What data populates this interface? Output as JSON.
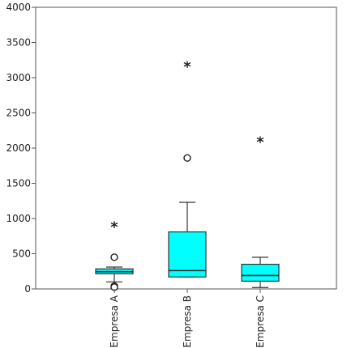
{
  "chart_data": {
    "type": "boxplot",
    "title": "",
    "xlabel": "",
    "ylabel": "",
    "ylim": [
      0,
      4000
    ],
    "yticks": [
      0,
      500,
      1000,
      1500,
      2000,
      2500,
      3000,
      3500,
      4000
    ],
    "grid": false,
    "legend": "none",
    "box_color": "#00ffff",
    "categories": [
      "Empresa A",
      "Empresa B",
      "Empresa C"
    ],
    "boxes": [
      {
        "category": "Empresa A",
        "whisker_low": 100,
        "q1": 215,
        "median": 245,
        "q3": 285,
        "whisker_high": 310,
        "outliers": [
          450,
          40,
          25
        ],
        "extremes": [
          900
        ]
      },
      {
        "category": "Empresa B",
        "whisker_low": 170,
        "q1": 170,
        "median": 260,
        "q3": 810,
        "whisker_high": 1230,
        "outliers": [
          1860
        ],
        "extremes": [
          3180
        ]
      },
      {
        "category": "Empresa C",
        "whisker_low": 20,
        "q1": 110,
        "median": 190,
        "q3": 350,
        "whisker_high": 450,
        "outliers": [],
        "extremes": [
          2110
        ]
      }
    ]
  }
}
